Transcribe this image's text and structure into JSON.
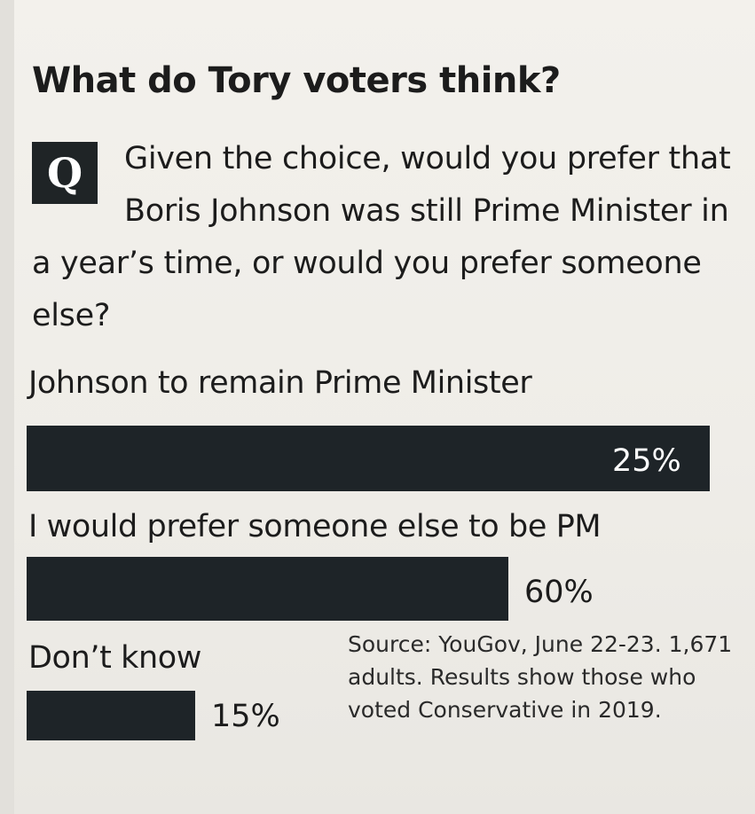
{
  "title": "What do Tory voters think?",
  "question_marker": "Q",
  "question": "Given the choice, would you prefer that Boris Johnson was still Prime Minister in a year’s time, or would you prefer someone else?",
  "source": "Source: YouGov, June 22-23. 1,671 adults. Results show those who voted Conservative in 2019.",
  "colors": {
    "bar": "#1e2428",
    "background": "#f1efea",
    "text": "#1c1c1c"
  },
  "chart_data": {
    "type": "bar",
    "orientation": "horizontal",
    "categories": [
      "Johnson to remain Prime Minister",
      "I would prefer someone else to be PM",
      "Don’t know"
    ],
    "values": [
      25,
      60,
      15
    ],
    "value_labels": [
      "25%",
      "60%",
      "15%"
    ],
    "unit": "%"
  }
}
